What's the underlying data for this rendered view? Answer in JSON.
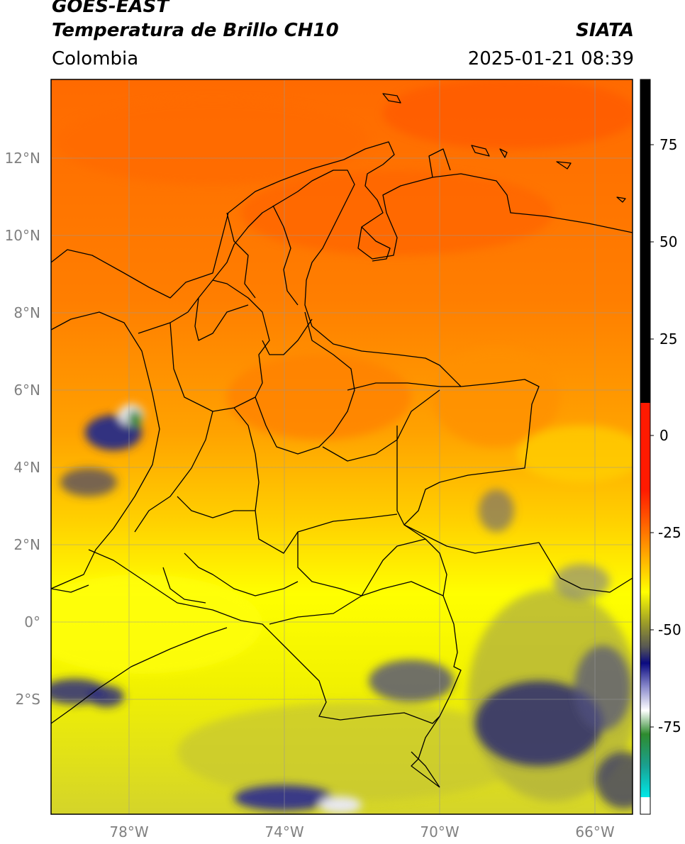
{
  "header": {
    "satellite": "GOES-EAST",
    "product": "Temperatura de Brillo CH10",
    "brand": "SIATA",
    "region": "Colombia",
    "timestamp": "2025-01-21 08:39"
  },
  "axes": {
    "lat_labels": [
      "12°N",
      "10°N",
      "8°N",
      "6°N",
      "4°N",
      "2°N",
      "0°",
      "2°S"
    ],
    "lon_labels": [
      "78°W",
      "74°W",
      "70°W",
      "66°W"
    ]
  },
  "colorbar": {
    "ticks": [
      "75",
      "50",
      "25",
      "0",
      "-25",
      "-50",
      "-75"
    ],
    "colors": {
      "black": "#000000",
      "red": "#ff1a00",
      "orange": "#ff8c00",
      "yellow": "#ffff00",
      "olive": "#9a9a2a",
      "darkblue": "#0a0a80",
      "white": "#ffffff",
      "green": "#2e8b2e",
      "teal": "#1aa090",
      "cyan": "#00e0e0"
    }
  },
  "field_colors": {
    "deep_orange": "#ff6a00",
    "orange": "#ff8c00",
    "amber": "#ffae00",
    "yellow": "#ffff00",
    "olive": "#c8c832",
    "cloud_blue": "#2a2a80"
  }
}
